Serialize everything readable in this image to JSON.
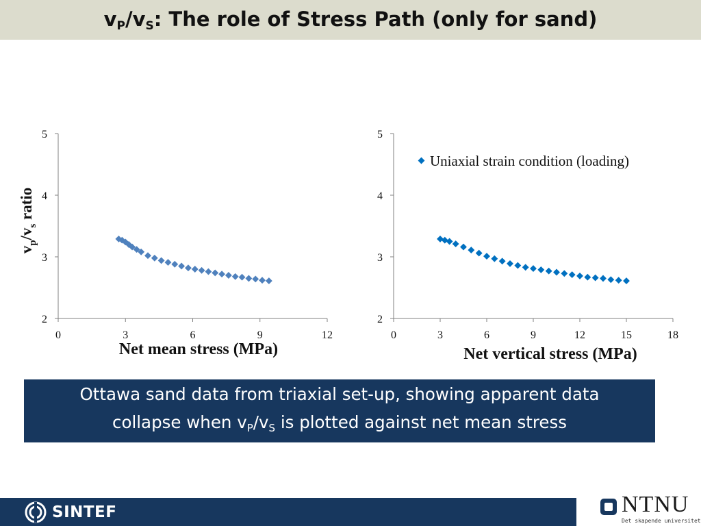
{
  "header": {
    "title_a": "v",
    "title_sub_a": "P",
    "title_b": "/v",
    "title_sub_b": "S",
    "title_c": ": The role of Stress Path (only for sand)"
  },
  "chart_data": [
    {
      "type": "scatter",
      "title": "",
      "xlabel": "Net mean stress (MPa)",
      "ylabel": "vp/vs ratio",
      "xlim": [
        0,
        12
      ],
      "ylim": [
        2,
        5
      ],
      "xticks": [
        "0",
        "3",
        "6",
        "9",
        "12"
      ],
      "yticks": [
        "2",
        "3",
        "4",
        "5"
      ],
      "grid": false,
      "legend": "none",
      "color": "#4f81bd",
      "series": [
        {
          "x": [
            2.7,
            2.85,
            3.0,
            3.15,
            3.3,
            3.5,
            3.7,
            4.0,
            4.3,
            4.6,
            4.9,
            5.2,
            5.5,
            5.8,
            6.1,
            6.4,
            6.7,
            7.0,
            7.3,
            7.6,
            7.9,
            8.2,
            8.5,
            8.8,
            9.1,
            9.4
          ],
          "y": [
            3.29,
            3.27,
            3.24,
            3.2,
            3.16,
            3.12,
            3.08,
            3.02,
            2.98,
            2.94,
            2.91,
            2.88,
            2.85,
            2.82,
            2.8,
            2.78,
            2.76,
            2.74,
            2.72,
            2.7,
            2.68,
            2.67,
            2.65,
            2.64,
            2.62,
            2.61
          ]
        }
      ]
    },
    {
      "type": "scatter",
      "title": "",
      "xlabel": "Net vertical stress (MPa)",
      "ylabel": "",
      "xlim": [
        0,
        18
      ],
      "ylim": [
        2,
        5
      ],
      "xticks": [
        "0",
        "3",
        "6",
        "9",
        "12",
        "15",
        "18"
      ],
      "yticks": [
        "2",
        "3",
        "4",
        "5"
      ],
      "grid": false,
      "legend": "top-right",
      "color": "#0070c0",
      "series": [
        {
          "name": "Uniaxial strain condition (loading)",
          "x": [
            3.0,
            3.3,
            3.6,
            4.0,
            4.5,
            5.0,
            5.5,
            6.0,
            6.5,
            7.0,
            7.5,
            8.0,
            8.5,
            9.0,
            9.5,
            10.0,
            10.5,
            11.0,
            11.5,
            12.0,
            12.5,
            13.0,
            13.5,
            14.0,
            14.5,
            15.0
          ],
          "y": [
            3.29,
            3.27,
            3.25,
            3.21,
            3.16,
            3.11,
            3.06,
            3.01,
            2.97,
            2.93,
            2.89,
            2.86,
            2.83,
            2.81,
            2.79,
            2.77,
            2.75,
            2.73,
            2.71,
            2.69,
            2.67,
            2.66,
            2.65,
            2.63,
            2.62,
            2.61
          ]
        }
      ]
    }
  ],
  "caption": {
    "line1": "Ottawa sand data from triaxial set-up, showing apparent data",
    "line2_a": "collapse when v",
    "line2_sub_a": "P",
    "line2_b": "/v",
    "line2_sub_b": "S",
    "line2_c": " is plotted against net mean stress"
  },
  "footer": {
    "left_logo": "SINTEF",
    "right_logo": "NTNU",
    "right_tagline": "Det skapende universitet",
    "brand_color": "#17375e"
  }
}
